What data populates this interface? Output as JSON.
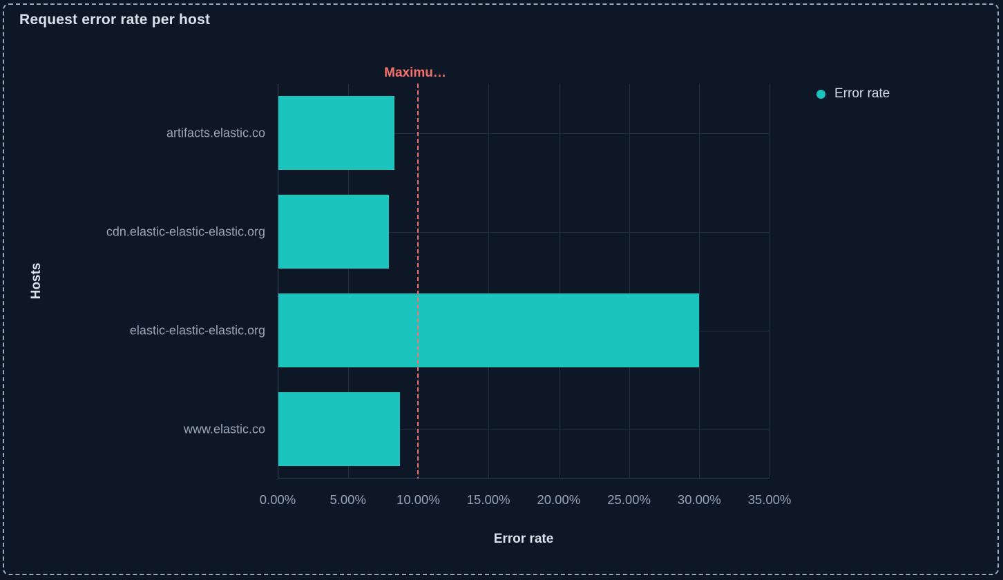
{
  "panel": {
    "title": "Request error rate per host"
  },
  "legend": {
    "position": "right-top",
    "items": [
      {
        "label": "Error rate",
        "color": "#1bc5bd"
      }
    ]
  },
  "chart_data": {
    "type": "bar",
    "orientation": "horizontal",
    "title": "Request error rate per host",
    "categories": [
      "artifacts.elastic.co",
      "cdn.elastic-elastic-elastic.org",
      "elastic-elastic-elastic.org",
      "www.elastic.co"
    ],
    "series": [
      {
        "name": "Error rate",
        "values": [
          8.3,
          7.9,
          30.0,
          8.7
        ]
      }
    ],
    "value_unit": "%",
    "xlabel": "Error rate",
    "ylabel": "Hosts",
    "xlim": [
      0,
      35
    ],
    "x_tick_values": [
      0,
      5,
      10,
      15,
      20,
      25,
      30,
      35
    ],
    "x_tick_labels": [
      "0.00%",
      "5.00%",
      "10.00%",
      "15.00%",
      "20.00%",
      "25.00%",
      "30.00%",
      "35.00%"
    ],
    "grid": true,
    "threshold": {
      "label": "Maximu…",
      "value": 10,
      "color": "#f6726a"
    },
    "legend_position": "right-top"
  },
  "colors": {
    "background": "#0e1726",
    "panel_border": "#97a9c6",
    "bar": "#1bc5bd",
    "threshold": "#f6726a",
    "grid": "#243145",
    "axis_line": "#35445f",
    "title_text": "#d9e0ea",
    "label_text": "#9ba6ba"
  }
}
